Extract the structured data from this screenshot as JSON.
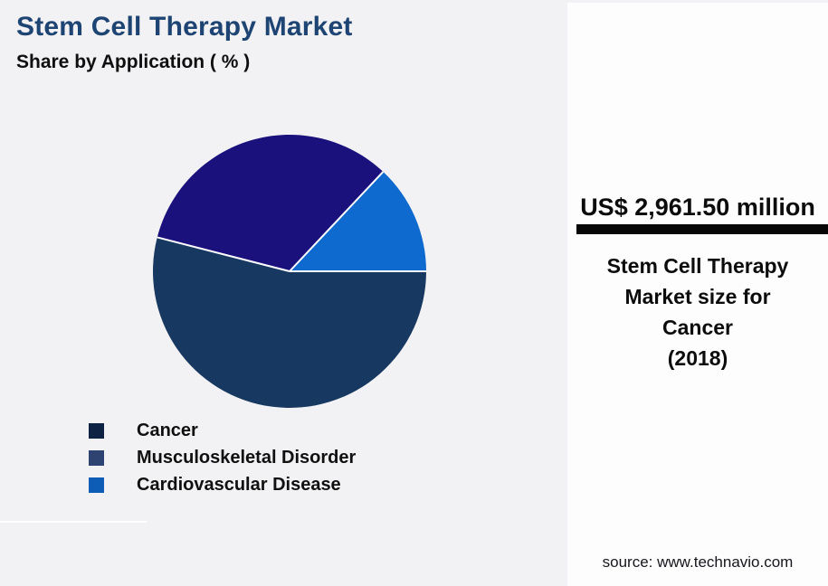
{
  "page": {
    "background": "#f2f2f4",
    "panel_background": "#fdfdfe"
  },
  "header": {
    "title": "Stem Cell Therapy Market",
    "subtitle": "Share by Application ( % )",
    "title_color": "#1e4473"
  },
  "chart_data": {
    "type": "pie",
    "title": "Stem Cell Therapy Market",
    "subtitle": "Share by Application ( % )",
    "unit": "%",
    "start_angle_deg": 0,
    "direction": "clockwise",
    "separator_color": "#ffffff",
    "legend_position": "bottom-left",
    "slices": [
      {
        "label": "Cancer",
        "value": 54,
        "color": "#173860",
        "legend_color": "#0e2343"
      },
      {
        "label": "Musculoskeletal Disorder",
        "value": 33,
        "color": "#1a117d",
        "legend_color": "#2e4372"
      },
      {
        "label": "Cardiovascular Disease",
        "value": 13,
        "color": "#0e6ace",
        "legend_color": "#0d5cb5"
      }
    ]
  },
  "side_panel": {
    "value": "US$ 2,961.50 million",
    "caption_lines": [
      "Stem Cell Therapy",
      "Market size for",
      "Cancer",
      "(2018)"
    ],
    "source": "source: www.technavio.com"
  }
}
